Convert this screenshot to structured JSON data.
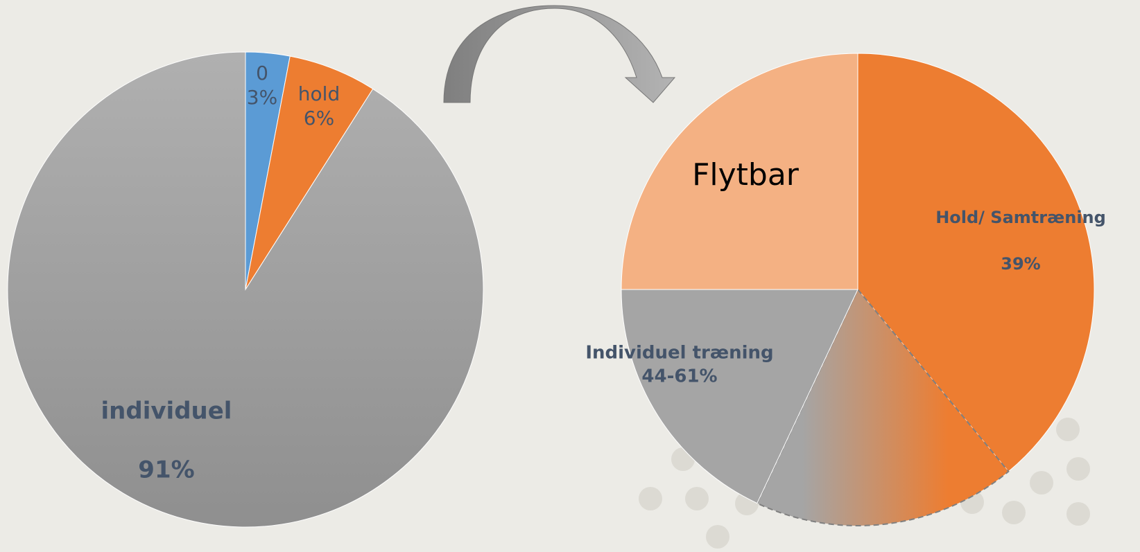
{
  "chart_data": [
    {
      "type": "pie",
      "categories": [
        "0",
        "hold",
        "individuel"
      ],
      "values": [
        3,
        6,
        91
      ],
      "value_labels": [
        "3%",
        "6%",
        "91%"
      ],
      "colors": [
        "#5b9bd5",
        "#ed7d31",
        "#a5a5a5"
      ]
    },
    {
      "type": "pie",
      "categories": [
        "Hold/ Samtræning",
        null,
        "Individuel træning",
        "Flytbar"
      ],
      "values": [
        39,
        18,
        18,
        25
      ],
      "colors": [
        "#ed7d31",
        "#ed7d31",
        "#a5a5a5",
        "#f4b183"
      ],
      "annotations": [
        "39%",
        "44-61%"
      ]
    }
  ]
}
